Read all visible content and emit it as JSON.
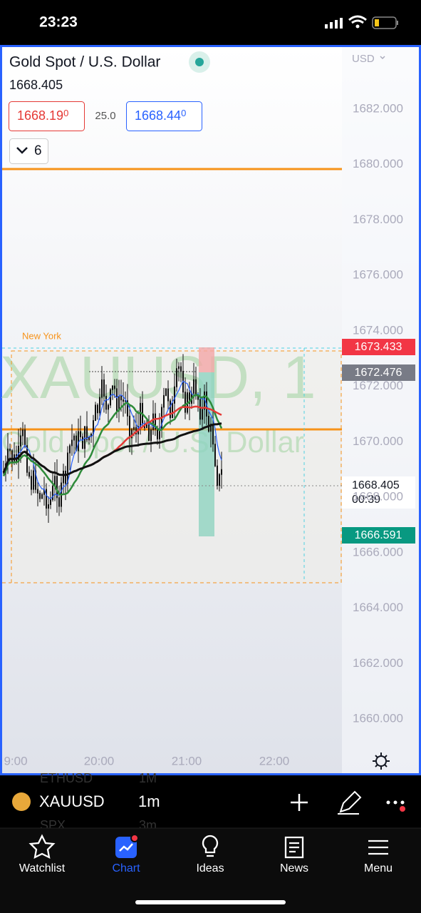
{
  "status": {
    "time": "23:23"
  },
  "header": {
    "title": "Gold Spot / U.S. Dollar",
    "price": "1668.405",
    "bid": "1668.19",
    "bid_digit": "0",
    "spread": "25.0",
    "ask": "1668.44",
    "ask_digit": "0",
    "indicators": "6",
    "currency": "USD"
  },
  "price_axis": [
    "1682.000",
    "1680.000",
    "1678.000",
    "1676.000",
    "1674.000",
    "1672.000",
    "1670.000",
    "1668.000",
    "1666.000",
    "1664.000",
    "1662.000",
    "1660.000"
  ],
  "price_tags": {
    "high": "1673.433",
    "level": "1672.476",
    "last": "1668.405",
    "countdown": "00:39",
    "low": "1666.591"
  },
  "time_axis": [
    "9:00",
    "20:00",
    "21:00",
    "22:00"
  ],
  "session": "New York",
  "watermark": {
    "symbol": "XAUUSD, 1",
    "name": "Gold Spot / U.S. Dollar"
  },
  "toolbar": {
    "symbol": "XAUUSD",
    "interval": "1m",
    "behind_symbol_1": "ETHUSD",
    "behind_interval_1": "1M",
    "behind_symbol_2": "SPX",
    "behind_interval_2": "3m"
  },
  "nav": [
    "Watchlist",
    "Chart",
    "Ideas",
    "News",
    "Menu"
  ]
}
